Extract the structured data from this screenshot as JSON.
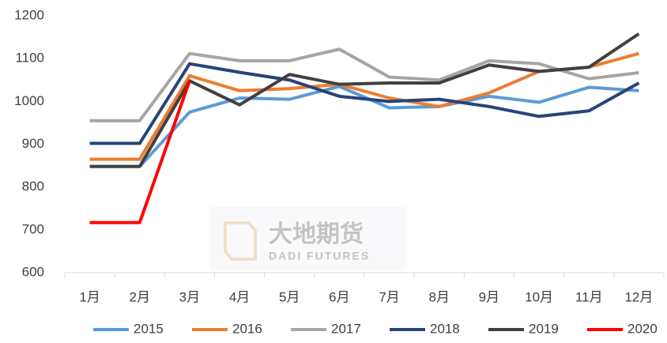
{
  "chart_data": {
    "type": "line",
    "categories": [
      "1月",
      "2月",
      "3月",
      "4月",
      "5月",
      "6月",
      "7月",
      "8月",
      "9月",
      "10月",
      "11月",
      "12月"
    ],
    "series": [
      {
        "name": "2015",
        "color": "#5b9bd5",
        "values": [
          848,
          848,
          975,
          1008,
          1005,
          1035,
          985,
          988,
          1012,
          998,
          1033,
          1025
        ]
      },
      {
        "name": "2016",
        "color": "#ed7d31",
        "values": [
          865,
          865,
          1060,
          1025,
          1030,
          1040,
          1008,
          988,
          1020,
          1070,
          1080,
          1112
        ]
      },
      {
        "name": "2017",
        "color": "#a5a5a5",
        "values": [
          955,
          955,
          1112,
          1095,
          1095,
          1122,
          1057,
          1050,
          1095,
          1088,
          1053,
          1067
        ]
      },
      {
        "name": "2018",
        "color": "#264478",
        "values": [
          902,
          902,
          1088,
          1068,
          1050,
          1012,
          1000,
          1005,
          988,
          965,
          978,
          1043
        ]
      },
      {
        "name": "2019",
        "color": "#404040",
        "values": [
          848,
          848,
          1048,
          992,
          1063,
          1040,
          1043,
          1043,
          1085,
          1070,
          1080,
          1158
        ]
      },
      {
        "name": "2020",
        "color": "#ff0000",
        "values": [
          717,
          717,
          1048,
          null,
          null,
          null,
          null,
          null,
          null,
          null,
          null,
          null
        ]
      }
    ],
    "ylim": [
      600,
      1200
    ],
    "yticks": [
      600,
      700,
      800,
      900,
      1000,
      1100,
      1200
    ],
    "legend": "bottom",
    "watermark": {
      "name": "大地期货",
      "subtitle": "DADI FUTURES"
    }
  }
}
